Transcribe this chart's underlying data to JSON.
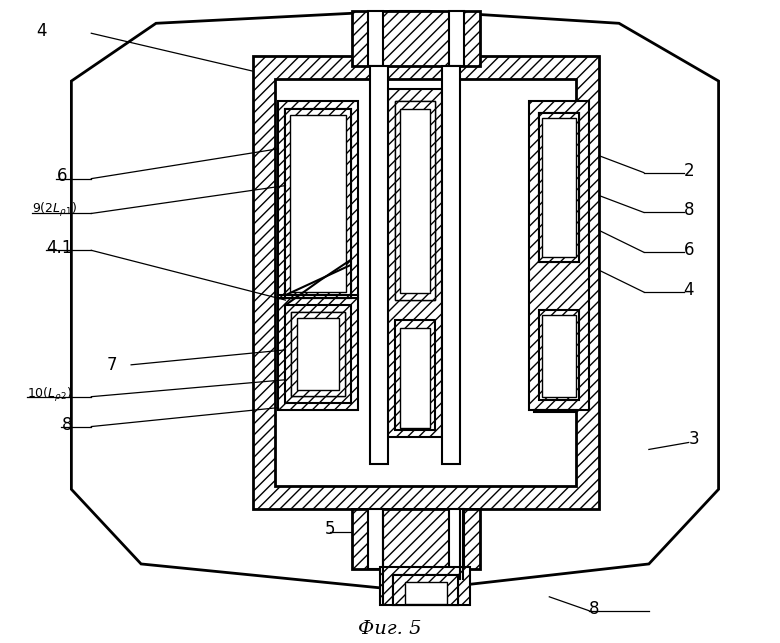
{
  "bg_color": "#ffffff",
  "line_color": "#000000",
  "fig_label": "Фиг. 5"
}
